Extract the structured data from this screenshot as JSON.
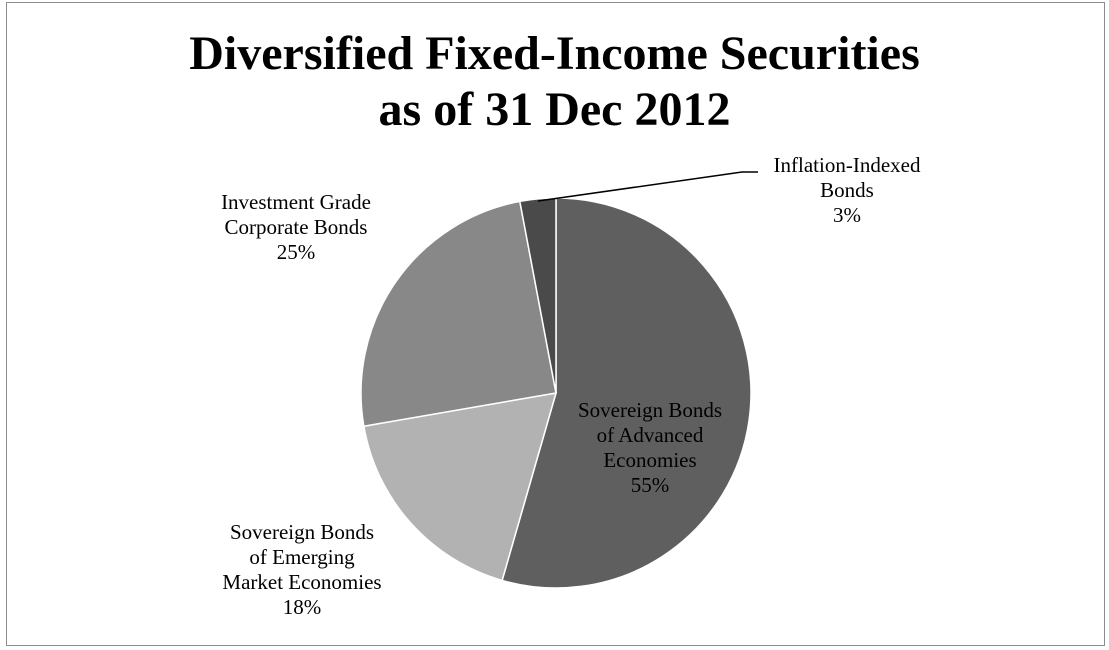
{
  "chart_data": {
    "type": "pie",
    "title": "Diversified Fixed-Income Securities as of 31 Dec 2012",
    "title_lines": [
      "Diversified Fixed-Income Securities",
      "as of 31 Dec 2012"
    ],
    "slices": [
      {
        "key": "sovereign_advanced",
        "label_lines": [
          "Sovereign Bonds",
          "of Advanced",
          "Economies"
        ],
        "value": 55,
        "value_label": "55%",
        "color": "#5f5f5f"
      },
      {
        "key": "sovereign_emerging",
        "label_lines": [
          "Sovereign Bonds",
          "of Emerging",
          "Market Economies"
        ],
        "value": 18,
        "value_label": "18%",
        "color": "#b2b2b2"
      },
      {
        "key": "investment_grade",
        "label_lines": [
          "Investment Grade",
          "Corporate Bonds"
        ],
        "value": 25,
        "value_label": "25%",
        "color": "#888888"
      },
      {
        "key": "inflation_indexed",
        "label_lines": [
          "Inflation-Indexed",
          "Bonds"
        ],
        "value": 3,
        "value_label": "3%",
        "color": "#4a4a4a"
      }
    ],
    "slice_border_color": "#ffffff",
    "leader_line_color": "#000000",
    "frame_border_color": "#8c8c8c",
    "legend": "none",
    "grid": false
  }
}
